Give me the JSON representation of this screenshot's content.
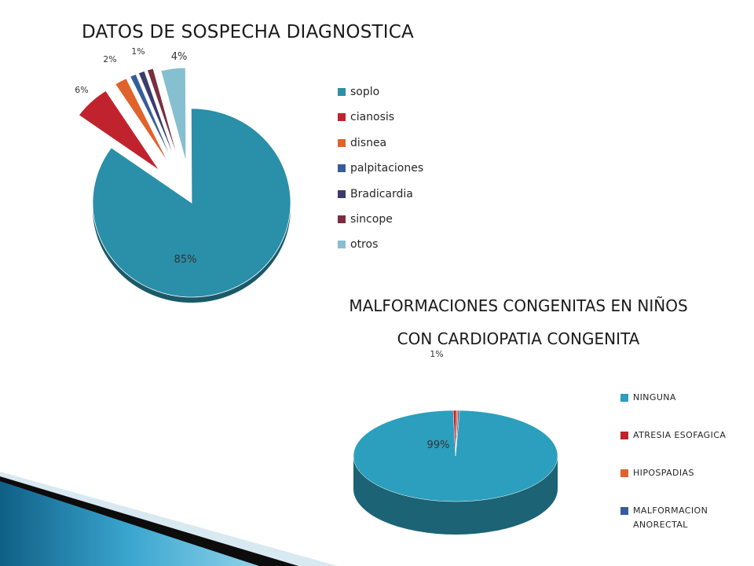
{
  "colors": {
    "teal": "#2a8fa8",
    "red": "#c0232e",
    "orange": "#e0632b",
    "blue": "#355d9a",
    "navy": "#3b3b6e",
    "maroon": "#7a2e3f",
    "lightblue": "#86bfd0",
    "teal2": "#2b9fbd"
  },
  "chart_data": [
    {
      "type": "pie",
      "title": "DATOS DE SOSPECHA DIAGNOSTICA",
      "legend_position": "right",
      "exploded": true,
      "three_d": true,
      "slices": [
        {
          "name": "soplo",
          "value": 85,
          "label": "85%",
          "color": "#2a8fa8"
        },
        {
          "name": "cianosis",
          "value": 6,
          "label": "6%",
          "color": "#c0232e"
        },
        {
          "name": "disnea",
          "value": 2,
          "label": "2%",
          "color": "#e0632b"
        },
        {
          "name": "palpitaciones",
          "value": 1,
          "label": "",
          "color": "#355d9a"
        },
        {
          "name": "Bradicardia",
          "value": 1,
          "label": "1%",
          "color": "#3b3b6e"
        },
        {
          "name": "sincope",
          "value": 1,
          "label": "",
          "color": "#7a2e3f"
        },
        {
          "name": "otros",
          "value": 4,
          "label": "4%",
          "color": "#86bfd0"
        }
      ]
    },
    {
      "type": "pie",
      "title": "MALFORMACIONES CONGENITAS EN NIÑOS CON CARDIOPATIA CONGENITA",
      "legend_position": "right",
      "three_d": true,
      "slices": [
        {
          "name": "NINGUNA",
          "value": 99,
          "label": "99%",
          "color": "#2b9fbd"
        },
        {
          "name": "ATRESIA ESOFAGICA",
          "value": 0.5,
          "label": "1%",
          "color": "#c0232e"
        },
        {
          "name": "HIPOSPADIAS",
          "value": 0.25,
          "label": "",
          "color": "#e0632b"
        },
        {
          "name": "MALFORMACION ANORECTAL",
          "value": 0.25,
          "label": "",
          "color": "#355d9a"
        }
      ]
    }
  ]
}
